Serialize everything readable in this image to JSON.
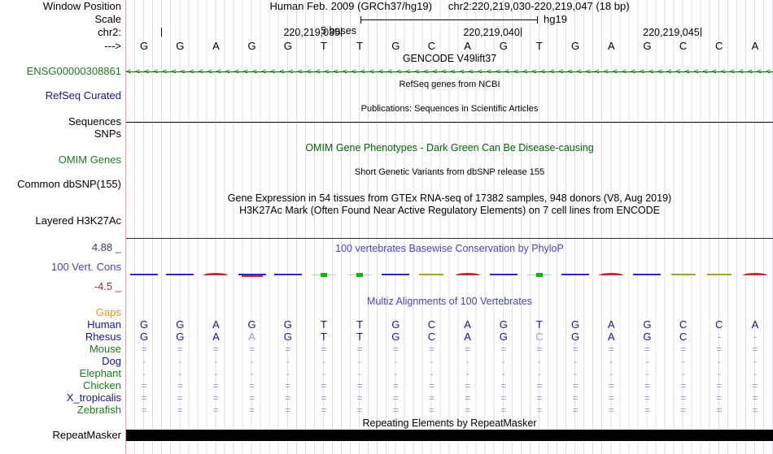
{
  "colors": {
    "navy": "#16168c",
    "green_label": "#1e7a1e",
    "dark_green": "#006400",
    "title_blue": "#4646b4",
    "orange": "#e0931f",
    "maroon": "#8b3232",
    "cons_max_color": "#3a3a7a",
    "dim": "#9898cc",
    "grid": "#dcdcf0",
    "edge_red": "#ff9a9a",
    "wiggle_blue": "#2828cc",
    "wiggle_red": "#cc2828",
    "wiggle_green": "#00bb00",
    "wiggle_green_line": "#a8e0a8",
    "wiggle_olive": "#a0a02a",
    "repeat_bar": "#000000",
    "track_divider_maroon": "#402525"
  },
  "header": {
    "window_position_label": "Window Position",
    "scale_label": "Scale",
    "chrom_label": "chr2:",
    "direction_label": "--->",
    "assembly": "Human Feb. 2009 (GRCh37/hg19)",
    "range": "chr2:220,219,030-220,219,047 (18 bp)",
    "scale_bases": "5 bases",
    "scale_genome": "hg19"
  },
  "ruler": {
    "sequence": [
      "G",
      "G",
      "A",
      "G",
      "G",
      "T",
      "T",
      "G",
      "C",
      "A",
      "G",
      "T",
      "G",
      "A",
      "G",
      "C",
      "C",
      "A"
    ],
    "ticks": [
      {
        "boundary": 1,
        "label": ""
      },
      {
        "boundary": 6,
        "label": "220,219,035"
      },
      {
        "boundary": 11,
        "label": "220,219,040"
      },
      {
        "boundary": 16,
        "label": "220,219,045"
      }
    ]
  },
  "tracks": {
    "gencode": {
      "title": "GENCODE V49lift37",
      "gene_id": "ENSG00000308861",
      "strand": "left"
    },
    "refseq": {
      "title": "RefSeq genes from NCBI",
      "label": "RefSeq Curated"
    },
    "publications": {
      "title": "Publications: Sequences in Scientific Articles",
      "label": "Sequences"
    },
    "snps_label": "SNPs",
    "omim": {
      "title": "OMIM Gene Phenotypes - Dark Green Can Be Disease-causing",
      "label": "OMIM Genes"
    },
    "dbsnp": {
      "title": "Short Genetic Variants from dbSNP release 155",
      "label": "Common dbSNP(155)"
    },
    "gtex": {
      "title": "Gene Expression in 54 tissues from GTEx RNA-seq of 17382 samples, 948 donors (V8, Aug 2019)"
    },
    "h3k27ac": {
      "title": "H3K27Ac Mark (Often Found Near Active Regulatory Elements) on 7 cell lines from ENCODE",
      "label": "Layered H3K27Ac"
    },
    "conservation": {
      "title": "100 vertebrates Basewise Conservation by PhyloP",
      "label": "100 Vert. Cons",
      "max_label": "4.88 _",
      "min_label": "-4.5 _",
      "wiggle": [
        "blue",
        "blue",
        "red",
        "blue_red",
        "blue",
        "green",
        "green",
        "blue",
        "olive",
        "red",
        "blue",
        "green",
        "blue",
        "red",
        "blue",
        "olive",
        "olive",
        "red"
      ]
    },
    "multiz": {
      "title": "Multiz Alignments of 100 Vertebrates",
      "rows": [
        {
          "label": "Gaps",
          "color": "orange"
        },
        {
          "label": "Human",
          "color": "navy",
          "cells": [
            "G",
            "G",
            "A",
            "G",
            "G",
            "T",
            "T",
            "G",
            "C",
            "A",
            "G",
            "T",
            "G",
            "A",
            "G",
            "C",
            "C",
            "A"
          ]
        },
        {
          "label": "Rhesus",
          "color": "navy",
          "cells": [
            "G",
            "G",
            "A",
            "A",
            "G",
            "T",
            "T",
            "G",
            "C",
            "A",
            "G",
            "C",
            "G",
            "A",
            "G",
            "C",
            "-",
            "-"
          ],
          "dim_indices": [
            3,
            11,
            16,
            17
          ]
        },
        {
          "label": "Mouse",
          "color": "green",
          "fill": "="
        },
        {
          "label": "Dog",
          "color": "navy",
          "fill": "-"
        },
        {
          "label": "Elephant",
          "color": "green",
          "fill": "-"
        },
        {
          "label": "Chicken",
          "color": "green",
          "fill": "="
        },
        {
          "label": "X_tropicalis",
          "color": "navy",
          "fill": "="
        },
        {
          "label": "Zebrafish",
          "color": "green",
          "fill": "="
        }
      ]
    },
    "repeatmasker": {
      "title": "Repeating Elements by RepeatMasker",
      "label": "RepeatMasker"
    }
  }
}
